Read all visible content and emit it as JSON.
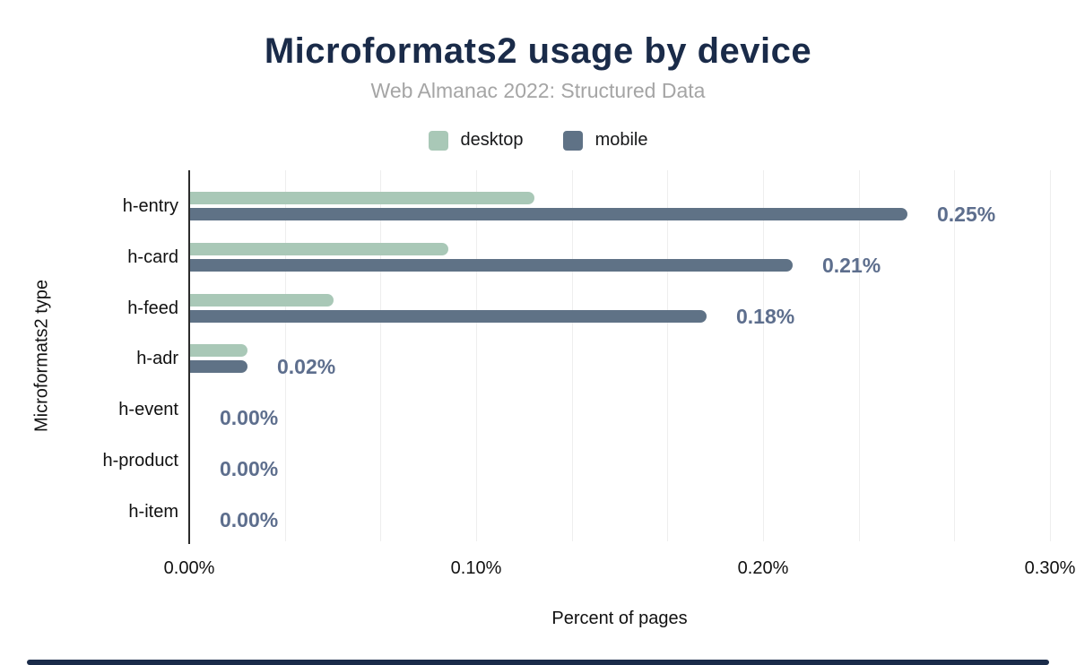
{
  "chart_data": {
    "type": "bar",
    "orientation": "horizontal",
    "title": "Microformats2 usage by device",
    "subtitle": "Web Almanac 2022: Structured Data",
    "xlabel": "Percent of pages",
    "ylabel": "Microformats2 type",
    "categories": [
      "h-entry",
      "h-card",
      "h-feed",
      "h-adr",
      "h-event",
      "h-product",
      "h-item"
    ],
    "series": [
      {
        "name": "desktop",
        "values": [
          0.12,
          0.09,
          0.05,
          0.02,
          0,
          0,
          0
        ]
      },
      {
        "name": "mobile",
        "values": [
          0.25,
          0.21,
          0.18,
          0.02,
          0,
          0,
          0
        ]
      }
    ],
    "bar_labels": [
      "0.25%",
      "0.21%",
      "0.18%",
      "0.02%",
      "0.00%",
      "0.00%",
      "0.00%"
    ],
    "x_ticks": [
      {
        "value": 0.0,
        "label": "0.00%"
      },
      {
        "value": 0.1,
        "label": "0.10%"
      },
      {
        "value": 0.2,
        "label": "0.20%"
      },
      {
        "value": 0.3,
        "label": "0.30%"
      }
    ],
    "xlim": [
      0,
      0.3
    ],
    "grid": "vertical minor gridlines at thirds of major interval",
    "legend_position": "top center"
  },
  "colors": {
    "desktop": "#a9c8b7",
    "mobile": "#5f7286",
    "title": "#1a2b49",
    "subtitle": "#a5a5a5",
    "data_label": "#5d6e8d",
    "grid": "#eeeeee",
    "axis": "#2b2b2b",
    "footer_bar": "#1a2b49"
  }
}
